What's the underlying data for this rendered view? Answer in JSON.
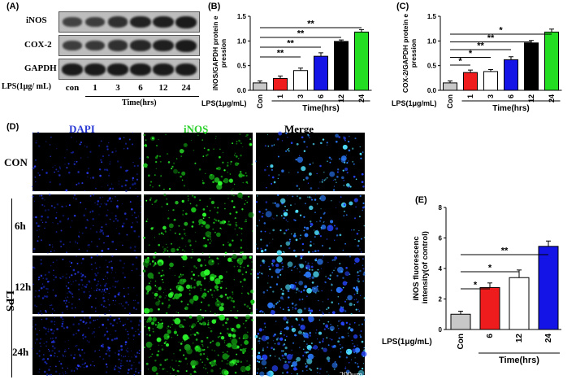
{
  "panel_a": {
    "label": "(A)",
    "proteins": [
      "iNOS",
      "COX-2",
      "GAPDH"
    ],
    "lps_label": "LPS(1μg/ mL)",
    "lanes": [
      "con",
      "1",
      "3",
      "6",
      "12",
      "24"
    ],
    "time_label": "Time(hrs)"
  },
  "panel_d": {
    "label": "(D)",
    "columns": [
      "DAPI",
      "iNOS",
      "Merge"
    ],
    "column_colors": [
      "#2b3bd6",
      "#2fd12f",
      "#000000"
    ],
    "rows": [
      "CON",
      "6h",
      "12h",
      "24h"
    ],
    "group_label": "LPS",
    "scale_bar": "200μm"
  },
  "chart_data": [
    {
      "panel": "(B)",
      "type": "bar",
      "categories": [
        "Con",
        "1",
        "3",
        "6",
        "12",
        "24"
      ],
      "values": [
        0.15,
        0.24,
        0.4,
        0.69,
        0.99,
        1.18
      ],
      "errors": [
        0.04,
        0.05,
        0.05,
        0.07,
        0.03,
        0.05
      ],
      "colors": [
        "#c8c8c8",
        "#ee1c1c",
        "#ffffff",
        "#1414e6",
        "#000000",
        "#22dd22"
      ],
      "ylabel": "iNOS/GAPDH protein expression",
      "ylim": [
        0,
        1.5
      ],
      "yticks": [
        "0.0",
        "0.5",
        "1.0",
        "1.5"
      ],
      "xlabel_prefix": "LPS(1μg/mL)",
      "xlabel": "Time(hrs)",
      "significance": [
        {
          "from": "Con",
          "to": "3",
          "label": "**"
        },
        {
          "from": "Con",
          "to": "6",
          "label": "**"
        },
        {
          "from": "Con",
          "to": "12",
          "label": "**"
        },
        {
          "from": "Con",
          "to": "24",
          "label": "**"
        }
      ]
    },
    {
      "panel": "(C)",
      "type": "bar",
      "categories": [
        "Con",
        "1",
        "3",
        "6",
        "12",
        "24"
      ],
      "values": [
        0.15,
        0.36,
        0.38,
        0.62,
        0.96,
        1.18
      ],
      "errors": [
        0.04,
        0.05,
        0.04,
        0.06,
        0.05,
        0.06
      ],
      "colors": [
        "#c8c8c8",
        "#ee1c1c",
        "#ffffff",
        "#1414e6",
        "#000000",
        "#22dd22"
      ],
      "ylabel": "COX-2/GAPDH protein expression",
      "ylim": [
        0,
        1.5
      ],
      "yticks": [
        "0.0",
        "0.5",
        "1.0",
        "1.5"
      ],
      "xlabel_prefix": "LPS(1μg/mL)",
      "xlabel": "Time(hrs)",
      "significance": [
        {
          "from": "Con",
          "to": "1",
          "label": "*"
        },
        {
          "from": "Con",
          "to": "3",
          "label": "*"
        },
        {
          "from": "Con",
          "to": "6",
          "label": "**"
        },
        {
          "from": "Con",
          "to": "12",
          "label": "**"
        },
        {
          "from": "Con",
          "to": "24",
          "label": "*"
        }
      ]
    },
    {
      "panel": "(E)",
      "type": "bar",
      "categories": [
        "Con",
        "6",
        "12",
        "24"
      ],
      "values": [
        1.0,
        2.75,
        3.4,
        5.45
      ],
      "errors": [
        0.2,
        0.3,
        0.5,
        0.35
      ],
      "colors": [
        "#c8c8c8",
        "#ee1c1c",
        "#ffffff",
        "#1414e6"
      ],
      "ylabel": "iNOS fluorescence intensity(of control)",
      "ylim": [
        0,
        8
      ],
      "yticks": [
        "0",
        "2",
        "4",
        "6",
        "8"
      ],
      "xlabel_prefix": "LPS(1μg/mL)",
      "xlabel": "Time(hrs)",
      "significance": [
        {
          "from": "Con",
          "to": "6",
          "label": "*"
        },
        {
          "from": "Con",
          "to": "12",
          "label": "*"
        },
        {
          "from": "Con",
          "to": "24",
          "label": "**"
        }
      ]
    }
  ]
}
